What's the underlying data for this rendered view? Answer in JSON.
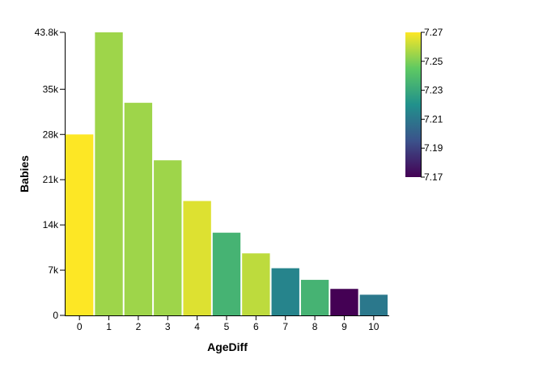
{
  "chart_data": {
    "type": "bar",
    "xlabel": "AgeDiff",
    "ylabel": "Babies",
    "categories": [
      "0",
      "1",
      "2",
      "3",
      "4",
      "5",
      "6",
      "7",
      "8",
      "9",
      "10"
    ],
    "values": [
      28000,
      43800,
      32900,
      24000,
      17700,
      12800,
      9600,
      7300,
      5500,
      4100,
      3200
    ],
    "color_values": [
      7.27,
      7.255,
      7.255,
      7.255,
      7.265,
      7.235,
      7.26,
      7.215,
      7.235,
      7.17,
      7.21
    ],
    "ylim": [
      0,
      43800
    ],
    "y_ticks": [
      {
        "value": 0,
        "label": "0"
      },
      {
        "value": 7000,
        "label": "7k"
      },
      {
        "value": 14000,
        "label": "14k"
      },
      {
        "value": 21000,
        "label": "21k"
      },
      {
        "value": 28000,
        "label": "28k"
      },
      {
        "value": 35000,
        "label": "35k"
      },
      {
        "value": 43800,
        "label": "43.8k"
      }
    ],
    "colorbar": {
      "range": [
        7.17,
        7.27
      ],
      "ticks": [
        {
          "value": 7.27,
          "label": "7.27"
        },
        {
          "value": 7.25,
          "label": "7.25"
        },
        {
          "value": 7.23,
          "label": "7.23"
        },
        {
          "value": 7.21,
          "label": "7.21"
        },
        {
          "value": 7.19,
          "label": "7.19"
        },
        {
          "value": 7.17,
          "label": "7.17"
        }
      ],
      "colormap": "viridis"
    },
    "grid": false
  }
}
